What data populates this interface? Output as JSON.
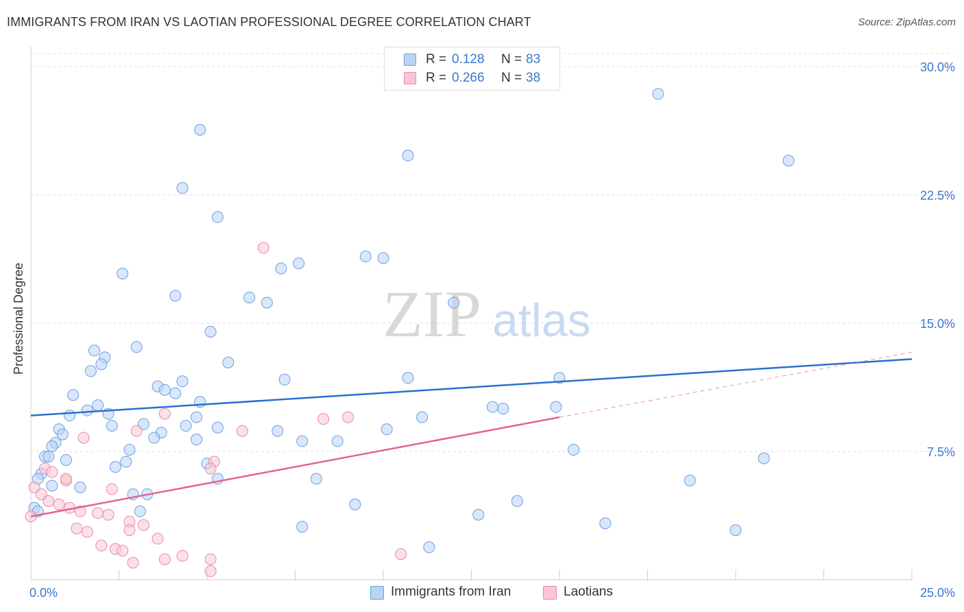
{
  "title": "IMMIGRANTS FROM IRAN VS LAOTIAN PROFESSIONAL DEGREE CORRELATION CHART",
  "source": "Source: ZipAtlas.com",
  "watermark": {
    "zip": "ZIP",
    "atlas": "atlas"
  },
  "legend": {
    "rows": [
      {
        "r_label": "R =",
        "r_value": "0.128",
        "n_label": "N =",
        "n_value": "83"
      },
      {
        "r_label": "R =",
        "r_value": "0.266",
        "n_label": "N =",
        "n_value": "38"
      }
    ]
  },
  "bottom_legend": {
    "series1": "Immigrants from Iran",
    "series2": "Laotians"
  },
  "colors": {
    "blue_fill": "#b9d3f5",
    "blue_stroke": "#6b9ee0",
    "blue_line": "#2a6fcf",
    "pink_fill": "#f9c6d6",
    "pink_stroke": "#e989a8",
    "pink_line": "#e0648e",
    "tick_label": "#3a78c9",
    "grid": "#dddddd"
  },
  "chart_data": {
    "type": "scatter",
    "title": "IMMIGRANTS FROM IRAN VS LAOTIAN PROFESSIONAL DEGREE CORRELATION CHART",
    "xlabel": "",
    "ylabel": "Professional Degree",
    "xlim": [
      0,
      25
    ],
    "ylim": [
      0,
      30
    ],
    "x_tick_labels": [
      "0.0%",
      "25.0%"
    ],
    "y_ticks": [
      7.5,
      15.0,
      22.5,
      30.0
    ],
    "y_tick_labels": [
      "7.5%",
      "15.0%",
      "22.5%",
      "30.0%"
    ],
    "grid": true,
    "legend_position": "top-center",
    "series": [
      {
        "name": "Immigrants from Iran",
        "R": 0.128,
        "N": 83,
        "trend": {
          "x": [
            0,
            25
          ],
          "y": [
            9.6,
            12.9
          ]
        },
        "points": [
          [
            4.8,
            26.3
          ],
          [
            10.7,
            24.8
          ],
          [
            21.5,
            24.5
          ],
          [
            17.8,
            28.4
          ],
          [
            4.3,
            22.9
          ],
          [
            5.3,
            21.2
          ],
          [
            9.5,
            18.9
          ],
          [
            10.0,
            18.8
          ],
          [
            7.1,
            18.2
          ],
          [
            7.6,
            18.5
          ],
          [
            2.6,
            17.9
          ],
          [
            4.1,
            16.6
          ],
          [
            6.2,
            16.5
          ],
          [
            6.7,
            16.2
          ],
          [
            12.0,
            16.2
          ],
          [
            5.1,
            14.5
          ],
          [
            3.0,
            13.6
          ],
          [
            1.8,
            13.4
          ],
          [
            2.1,
            13.0
          ],
          [
            2.0,
            12.6
          ],
          [
            5.6,
            12.7
          ],
          [
            1.7,
            12.2
          ],
          [
            7.2,
            11.7
          ],
          [
            10.7,
            11.8
          ],
          [
            15.0,
            11.8
          ],
          [
            3.6,
            11.3
          ],
          [
            4.3,
            11.6
          ],
          [
            3.8,
            11.1
          ],
          [
            4.1,
            10.9
          ],
          [
            1.2,
            10.8
          ],
          [
            4.8,
            10.4
          ],
          [
            1.9,
            10.2
          ],
          [
            1.6,
            9.9
          ],
          [
            13.1,
            10.1
          ],
          [
            13.4,
            10.0
          ],
          [
            14.9,
            10.1
          ],
          [
            2.2,
            9.7
          ],
          [
            1.1,
            9.6
          ],
          [
            4.7,
            9.5
          ],
          [
            11.1,
            9.5
          ],
          [
            3.2,
            9.1
          ],
          [
            2.3,
            9.0
          ],
          [
            4.4,
            9.0
          ],
          [
            5.3,
            8.9
          ],
          [
            3.7,
            8.6
          ],
          [
            7.0,
            8.7
          ],
          [
            10.1,
            8.8
          ],
          [
            0.8,
            8.8
          ],
          [
            0.9,
            8.5
          ],
          [
            3.5,
            8.3
          ],
          [
            4.7,
            8.2
          ],
          [
            7.7,
            8.1
          ],
          [
            8.7,
            8.1
          ],
          [
            0.7,
            8.0
          ],
          [
            0.6,
            7.8
          ],
          [
            2.8,
            7.6
          ],
          [
            15.4,
            7.6
          ],
          [
            0.4,
            7.2
          ],
          [
            0.5,
            7.2
          ],
          [
            1.0,
            7.0
          ],
          [
            2.7,
            6.9
          ],
          [
            5.0,
            6.8
          ],
          [
            2.4,
            6.6
          ],
          [
            20.8,
            7.1
          ],
          [
            0.3,
            6.2
          ],
          [
            0.2,
            5.9
          ],
          [
            5.3,
            5.9
          ],
          [
            8.1,
            5.9
          ],
          [
            18.7,
            5.8
          ],
          [
            1.4,
            5.4
          ],
          [
            2.9,
            5.0
          ],
          [
            3.3,
            5.0
          ],
          [
            9.2,
            4.4
          ],
          [
            13.8,
            4.6
          ],
          [
            0.1,
            4.2
          ],
          [
            3.1,
            4.0
          ],
          [
            12.7,
            3.8
          ],
          [
            16.3,
            3.3
          ],
          [
            7.7,
            3.1
          ],
          [
            20.0,
            2.9
          ],
          [
            11.3,
            1.9
          ],
          [
            0.6,
            5.5
          ],
          [
            0.2,
            4.0
          ]
        ]
      },
      {
        "name": "Laotians",
        "R": 0.266,
        "N": 38,
        "trend": {
          "x": [
            0,
            15
          ],
          "y": [
            3.7,
            9.5
          ]
        },
        "trend_dashed": {
          "x": [
            15,
            25
          ],
          "y": [
            9.5,
            13.3
          ]
        },
        "points": [
          [
            6.6,
            19.4
          ],
          [
            8.3,
            9.4
          ],
          [
            9.0,
            9.5
          ],
          [
            3.8,
            9.7
          ],
          [
            6.0,
            8.7
          ],
          [
            3.0,
            8.7
          ],
          [
            1.5,
            8.3
          ],
          [
            5.2,
            6.9
          ],
          [
            5.1,
            6.5
          ],
          [
            0.4,
            6.5
          ],
          [
            0.6,
            6.3
          ],
          [
            1.0,
            5.8
          ],
          [
            1.0,
            5.9
          ],
          [
            2.3,
            5.3
          ],
          [
            0.1,
            5.4
          ],
          [
            0.3,
            5.0
          ],
          [
            0.5,
            4.6
          ],
          [
            0.8,
            4.4
          ],
          [
            1.1,
            4.2
          ],
          [
            1.4,
            4.0
          ],
          [
            1.9,
            3.9
          ],
          [
            2.2,
            3.8
          ],
          [
            2.8,
            3.4
          ],
          [
            3.2,
            3.2
          ],
          [
            1.3,
            3.0
          ],
          [
            2.8,
            2.9
          ],
          [
            1.6,
            2.8
          ],
          [
            3.6,
            2.4
          ],
          [
            2.0,
            2.0
          ],
          [
            2.4,
            1.8
          ],
          [
            2.6,
            1.7
          ],
          [
            4.3,
            1.4
          ],
          [
            3.8,
            1.2
          ],
          [
            5.1,
            1.2
          ],
          [
            2.9,
            1.0
          ],
          [
            10.5,
            1.5
          ],
          [
            5.1,
            0.5
          ],
          [
            0.0,
            3.7
          ]
        ]
      }
    ]
  }
}
